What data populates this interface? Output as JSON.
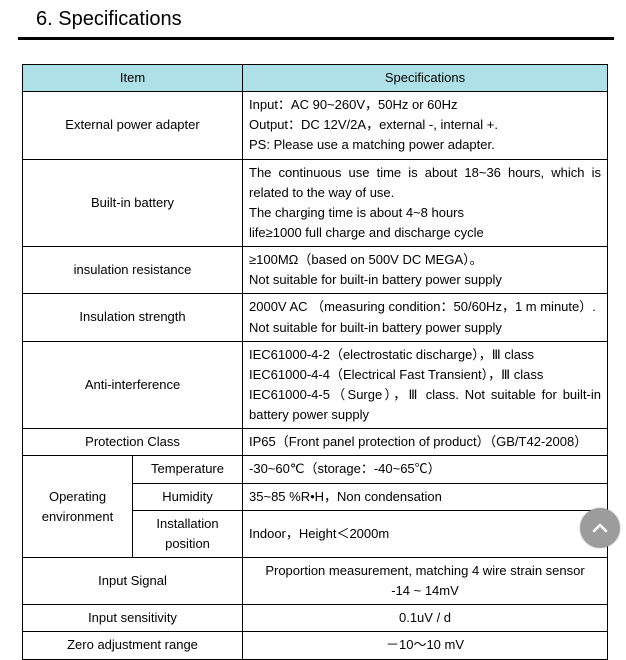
{
  "colors": {
    "header_bg": "#aee0e8",
    "border": "#000000",
    "page_bg": "#ffffff",
    "text": "#000000",
    "scroll_btn_bg": "#9c9c9c",
    "scroll_btn_arrow": "#ffffff"
  },
  "heading": "6. Specifications",
  "table": {
    "head_item": "Item",
    "head_spec": "Specifications",
    "rows": {
      "ext_power": {
        "label": "External power adapter",
        "value": "Input：AC 90~260V，50Hz or 60Hz\nOutput：DC 12V/2A，external -, internal +.\nPS: Please use a matching power adapter."
      },
      "battery": {
        "label": "Built-in battery",
        "value": "The continuous use time is about 18~36 hours, which is related to the way of use.\nThe charging time is about 4~8 hours\nlife≥1000 full charge and discharge cycle"
      },
      "insul_res": {
        "label": "insulation resistance",
        "value": "≥100MΩ（based on 500V DC MEGA）。\nNot suitable for built-in battery power supply"
      },
      "insul_str": {
        "label": "Insulation strength",
        "value": "2000V AC   （measuring condition：50/60Hz，1 m minute）.\nNot suitable for built-in battery power supply"
      },
      "anti_intf": {
        "label": "Anti-interference",
        "value": "IEC61000-4-2（electrostatic discharge），Ⅲ class\nIEC61000-4-4（Electrical Fast Transient），Ⅲ class\nIEC61000-4-5（Surge），Ⅲ class. Not suitable for built-in battery power supply"
      },
      "prot_class": {
        "label": "Protection Class",
        "value": "IP65（Front panel protection of product）（GB/T42-2008）"
      },
      "op_env_label": "Operating environment",
      "op_env": {
        "temp_label": "Temperature",
        "temp_value": "-30~60℃（storage：-40~65℃）",
        "hum_label": "Humidity",
        "hum_value": "35~85 %R•H，Non condensation",
        "inst_label": "Installation position",
        "inst_value": "Indoor，Height＜2000m"
      },
      "input_signal": {
        "label": "Input Signal",
        "value": "Proportion measurement, matching 4 wire strain sensor\n-14 ~ 14mV"
      },
      "input_sens": {
        "label": "Input sensitivity",
        "value": "0.1uV / d"
      },
      "zero_adj": {
        "label": "Zero adjustment range",
        "value": "－10～10 mV"
      }
    }
  }
}
